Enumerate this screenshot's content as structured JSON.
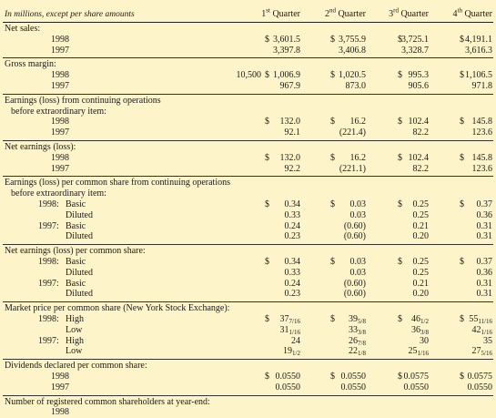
{
  "header": {
    "title": "In millions, except per share amounts",
    "quarters": [
      {
        "num": "1",
        "sup": "st",
        "word": "Quarter"
      },
      {
        "num": "2",
        "sup": "nd",
        "word": "Quarter"
      },
      {
        "num": "3",
        "sup": "rd",
        "word": "Quarter"
      },
      {
        "num": "4",
        "sup": "th",
        "word": "Quarter"
      }
    ]
  },
  "sections": [
    {
      "title": [
        "Net sales:"
      ],
      "rows": [
        {
          "year": "1998",
          "values": [
            {
              "cur": "$",
              "v": "3,601.5"
            },
            {
              "cur": "$",
              "v": "3,755.9"
            },
            {
              "cur": "$",
              "v": "3,725.1"
            },
            {
              "cur": "$",
              "v": "4,191.1"
            }
          ]
        },
        {
          "year": "1997",
          "values": [
            "3,397.8",
            "3,406.8",
            "3,328.7",
            "3,616.3"
          ]
        }
      ]
    },
    {
      "title": [
        "Gross margin:"
      ],
      "rows": [
        {
          "year": "1998",
          "note": "10,500",
          "values": [
            {
              "cur": "$",
              "v": "1,006.9"
            },
            {
              "cur": "$",
              "v": "1,020.5"
            },
            {
              "cur": "$",
              "v": "995.3"
            },
            {
              "cur": "$",
              "v": "1,106.5"
            }
          ]
        },
        {
          "year": "1997",
          "values": [
            "967.9",
            "873.0",
            "905.6",
            "971.8"
          ]
        }
      ]
    },
    {
      "title": [
        "Earnings (loss) from continuing operations",
        "before extraordinary item:"
      ],
      "rows": [
        {
          "year": "1998",
          "values": [
            {
              "cur": "$",
              "v": "132.0"
            },
            {
              "cur": "$",
              "v": "16.2"
            },
            {
              "cur": "$",
              "v": "102.4"
            },
            {
              "cur": "$",
              "v": "145.8"
            }
          ]
        },
        {
          "year": "1997",
          "values": [
            "92.1",
            "(221.4)",
            "82.2",
            "123.6"
          ]
        }
      ]
    },
    {
      "title": [
        "Net earnings (loss):"
      ],
      "rows": [
        {
          "year": "1998",
          "values": [
            {
              "cur": "$",
              "v": "132.0"
            },
            {
              "cur": "$",
              "v": "16.2"
            },
            {
              "cur": "$",
              "v": "102.4"
            },
            {
              "cur": "$",
              "v": "145.8"
            }
          ]
        },
        {
          "year": "1997",
          "values": [
            "92.2",
            "(221.1)",
            "82.2",
            "123.6"
          ]
        }
      ]
    },
    {
      "title": [
        "Earnings (loss) per common share from continuing operations",
        "before extraordinary item:"
      ],
      "rows": [
        {
          "year": "1998:",
          "sub": "Basic",
          "values": [
            {
              "cur": "$",
              "v": "0.34"
            },
            {
              "cur": "$",
              "v": "0.03"
            },
            {
              "cur": "$",
              "v": "0.25"
            },
            {
              "cur": "$",
              "v": "0.37"
            }
          ]
        },
        {
          "sub": "Diluted",
          "values": [
            "0.33",
            "0.03",
            "0.25",
            "0.36"
          ]
        },
        {
          "year": "1997:",
          "sub": "Basic",
          "values": [
            "0.24",
            "(0.60)",
            "0.21",
            "0.31"
          ]
        },
        {
          "sub": "Diluted",
          "values": [
            "0.23",
            "(0.60)",
            "0.20",
            "0.31"
          ]
        }
      ]
    },
    {
      "title": [
        "Net earnings (loss) per common share:"
      ],
      "rows": [
        {
          "year": "1998:",
          "sub": "Basic",
          "values": [
            {
              "cur": "$",
              "v": "0.34"
            },
            {
              "cur": "$",
              "v": "0.03"
            },
            {
              "cur": "$",
              "v": "0.25"
            },
            {
              "cur": "$",
              "v": "0.37"
            }
          ]
        },
        {
          "sub": "Diluted",
          "values": [
            "0.33",
            "0.03",
            "0.25",
            "0.36"
          ]
        },
        {
          "year": "1997:",
          "sub": "Basic",
          "values": [
            "0.24",
            "(0.60)",
            "0.21",
            "0.31"
          ]
        },
        {
          "sub": "Diluted",
          "values": [
            "0.23",
            "(0.60)",
            "0.20",
            "0.31"
          ]
        }
      ]
    },
    {
      "title": [
        "Market price per common share (New York Stock Exchange):"
      ],
      "rows": [
        {
          "year": "1998:",
          "sub": "High",
          "values": [
            {
              "cur": "$",
              "v": "37",
              "frac": "7/16"
            },
            {
              "cur": "$",
              "v": "39",
              "frac": "5/8"
            },
            {
              "cur": "$",
              "v": "46",
              "frac": "1/2"
            },
            {
              "cur": "$",
              "v": "55",
              "frac": "11/16"
            }
          ]
        },
        {
          "sub": "Low",
          "values": [
            {
              "v": "31",
              "frac": "1/16"
            },
            {
              "v": "33",
              "frac": "3/8"
            },
            {
              "v": "36",
              "frac": "3/8"
            },
            {
              "v": "42",
              "frac": "1/16"
            }
          ]
        },
        {
          "year": "1997:",
          "sub": "High",
          "values": [
            "24",
            {
              "v": "26",
              "frac": "7/8"
            },
            "30",
            "35"
          ]
        },
        {
          "sub": "Low",
          "values": [
            {
              "v": "19",
              "frac": "1/2"
            },
            {
              "v": "22",
              "frac": "1/8"
            },
            {
              "v": "25",
              "frac": "1/16"
            },
            {
              "v": "27",
              "frac": "5/16"
            }
          ]
        }
      ]
    },
    {
      "title": [
        "Dividends declared per common share:"
      ],
      "rows": [
        {
          "year": "1998",
          "values": [
            {
              "cur": "$",
              "v": "0.0550"
            },
            {
              "cur": "$",
              "v": "0.0550"
            },
            {
              "cur": "$",
              "v": "0.0575"
            },
            {
              "cur": "$",
              "v": "0.0575"
            }
          ]
        },
        {
          "year": "1997",
          "values": [
            "0.0550",
            "0.0550",
            "0.0550",
            "0.0550"
          ]
        }
      ]
    },
    {
      "title": [
        "Number of registered common shareholders at year-end:"
      ],
      "rows": [
        {
          "year": "1998",
          "values": []
        }
      ]
    }
  ]
}
